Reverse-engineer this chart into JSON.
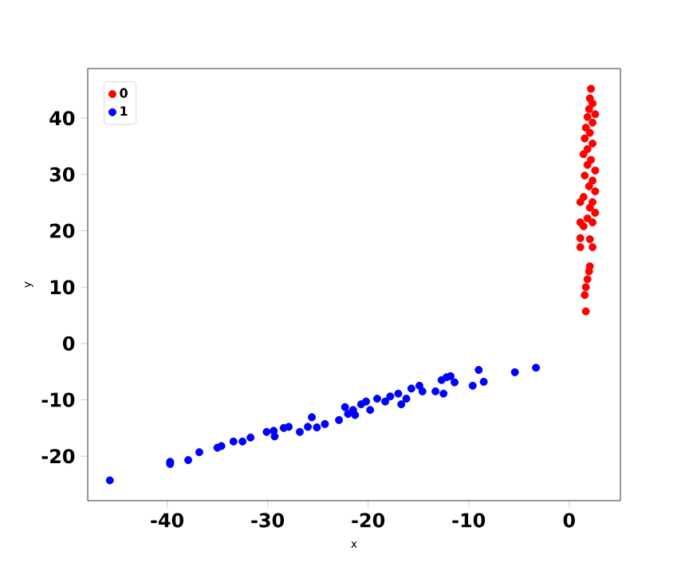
{
  "chart_data": {
    "type": "scatter",
    "xlabel": "x",
    "ylabel": "y",
    "xlim": [
      -47.9,
      5.1
    ],
    "ylim": [
      -27.9,
      48.8
    ],
    "xticks": [
      -40,
      -30,
      -20,
      -10,
      0
    ],
    "yticks": [
      -20,
      -10,
      0,
      10,
      20,
      30,
      40
    ],
    "grid": false,
    "legend": "top left",
    "marker": "circle",
    "series": [
      {
        "name": "0",
        "color": "#ff0000",
        "x": [
          2.17,
          2.06,
          2.33,
          1.98,
          2.59,
          1.82,
          2.33,
          1.66,
          2.06,
          1.55,
          2.33,
          1.82,
          1.43,
          2.17,
          1.82,
          2.59,
          1.55,
          2.33,
          1.98,
          2.59,
          1.43,
          2.33,
          1.11,
          2.06,
          2.59,
          1.82,
          2.33,
          1.11,
          1.43,
          1.11,
          2.06,
          1.11,
          2.33,
          2.06,
          1.98,
          1.82,
          1.66,
          1.55,
          1.66
        ],
        "values": [
          45.2,
          43.5,
          42.6,
          41.6,
          40.7,
          40.2,
          39.2,
          38.3,
          37.4,
          36.4,
          35.5,
          34.5,
          33.6,
          32.6,
          31.7,
          30.7,
          29.8,
          28.9,
          27.9,
          27.0,
          26.0,
          25.1,
          25.1,
          24.1,
          23.2,
          22.2,
          21.5,
          21.5,
          20.8,
          18.7,
          18.5,
          17.1,
          17.1,
          13.7,
          12.8,
          11.4,
          10.0,
          8.6,
          5.7
        ]
      },
      {
        "name": "1",
        "color": "#0000ff",
        "x": [
          -45.7,
          -39.7,
          -39.7,
          -37.9,
          -36.8,
          -35.0,
          -34.6,
          -33.4,
          -32.5,
          -31.7,
          -30.1,
          -29.4,
          -29.3,
          -28.4,
          -27.9,
          -26.8,
          -26.0,
          -25.6,
          -25.1,
          -24.3,
          -22.9,
          -22.3,
          -22.0,
          -21.5,
          -21.3,
          -20.7,
          -20.2,
          -19.8,
          -19.1,
          -18.3,
          -17.8,
          -17.0,
          -16.7,
          -16.2,
          -15.7,
          -14.9,
          -14.6,
          -13.3,
          -12.7,
          -12.2,
          -11.8,
          -12.5,
          -11.4,
          -9.6,
          -9.0,
          -8.5,
          -5.4,
          -3.3
        ],
        "values": [
          -24.3,
          -21.0,
          -21.4,
          -20.7,
          -19.3,
          -18.5,
          -18.2,
          -17.4,
          -17.4,
          -16.7,
          -15.7,
          -15.5,
          -16.5,
          -15.0,
          -14.8,
          -15.7,
          -14.8,
          -13.1,
          -14.9,
          -14.3,
          -13.6,
          -11.3,
          -12.5,
          -11.8,
          -12.7,
          -10.8,
          -10.3,
          -11.8,
          -9.8,
          -10.3,
          -9.4,
          -8.9,
          -10.8,
          -9.8,
          -8.0,
          -7.5,
          -8.5,
          -8.5,
          -6.5,
          -6.0,
          -5.8,
          -8.9,
          -6.9,
          -7.5,
          -4.7,
          -6.8,
          -5.1,
          -4.3
        ]
      }
    ]
  }
}
